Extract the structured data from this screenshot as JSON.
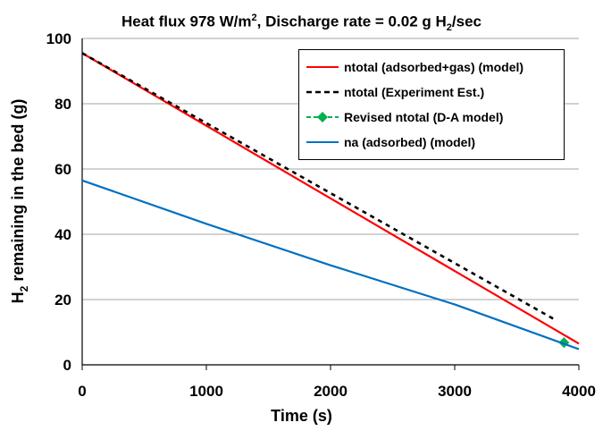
{
  "chart_data": {
    "type": "line",
    "title": {
      "prefix": "Heat flux 978 W/m",
      "sup": "2",
      "mid": ", Discharge rate = 0.02 g H",
      "sub": "2",
      "suffix": "/sec"
    },
    "xlabel": "Time (s)",
    "ylabel": {
      "prefix": "H",
      "sub": "2",
      "suffix": " remaining in the bed (g)"
    },
    "xlim": [
      0,
      4000
    ],
    "ylim": [
      0,
      100
    ],
    "xticks": [
      "0",
      "1000",
      "2000",
      "3000",
      "4000"
    ],
    "yticks": [
      "0",
      "20",
      "40",
      "60",
      "80",
      "100"
    ],
    "grid": "horizontal",
    "legend_position": "top-right",
    "series": [
      {
        "name": "ntotal (adsorbed+gas) (model)",
        "color": "#ff0000",
        "style": "solid",
        "x": [
          0,
          4000
        ],
        "y": [
          95.5,
          6.5
        ]
      },
      {
        "name": "ntotal (Experiment Est.)",
        "color": "#000000",
        "style": "dashed",
        "x": [
          0,
          3800
        ],
        "y": [
          95.5,
          14
        ]
      },
      {
        "name": "Revised ntotal (D-A model)",
        "color": "#00b050",
        "style": "marker",
        "x": [
          3880
        ],
        "y": [
          6.8
        ]
      },
      {
        "name": "na (adsorbed) (model)",
        "color": "#0070c0",
        "style": "solid",
        "x": [
          0,
          1000,
          2000,
          3000,
          4000
        ],
        "y": [
          56.5,
          43.2,
          30.5,
          18.5,
          4.8
        ]
      }
    ]
  }
}
